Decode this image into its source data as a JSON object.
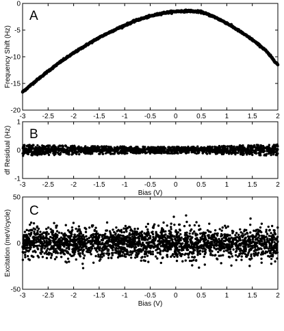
{
  "chart_data": [
    {
      "type": "scatter",
      "panel_letter": "A",
      "xlabel": "",
      "ylabel": "Frequency Shift (Hz)",
      "xlim": [
        -3,
        2
      ],
      "ylim": [
        -20,
        0
      ],
      "xticks": [
        -3,
        -2.5,
        -2,
        -1.5,
        -1,
        -0.5,
        0,
        0.5,
        1,
        1.5,
        2
      ],
      "yticks": [
        -20,
        -15,
        -10,
        -5,
        0
      ],
      "grid": false,
      "series": [
        {
          "x": [
            -3.0,
            -2.75,
            -2.5,
            -2.25,
            -2.0,
            -1.75,
            -1.5,
            -1.25,
            -1.0,
            -0.75,
            -0.5,
            -0.25,
            0.0,
            0.25,
            0.5,
            0.75,
            1.0,
            1.25,
            1.5,
            1.75,
            2.0
          ],
          "values": [
            -16.6,
            -14.6,
            -12.7,
            -10.9,
            -9.3,
            -7.8,
            -6.4,
            -5.2,
            -4.1,
            -3.1,
            -2.4,
            -1.8,
            -1.5,
            -1.4,
            -1.6,
            -2.5,
            -3.7,
            -5.2,
            -6.8,
            -8.7,
            -11.5
          ]
        }
      ]
    },
    {
      "type": "scatter",
      "panel_letter": "B",
      "xlabel": "Bias (V)",
      "ylabel": "df Residual (Hz)",
      "xlim": [
        -3,
        2
      ],
      "ylim": [
        -1,
        1
      ],
      "xticks": [
        -3,
        -2.5,
        -2,
        -1.5,
        -1,
        -0.5,
        0,
        0.5,
        1,
        1.5,
        2
      ],
      "yticks": [
        -1,
        0,
        1
      ],
      "grid": false,
      "series": [
        {
          "x": [
            -3.0,
            -2.5,
            -2.0,
            -1.5,
            -1.0,
            -0.5,
            0.0,
            0.5,
            1.0,
            1.5,
            2.0
          ],
          "values": [
            0,
            0,
            0,
            0,
            0,
            0,
            0,
            0,
            0,
            0,
            0
          ],
          "spread": [
            0.2,
            0.18,
            0.16,
            0.14,
            0.13,
            0.12,
            0.12,
            0.13,
            0.15,
            0.18,
            0.2
          ]
        }
      ]
    },
    {
      "type": "scatter",
      "panel_letter": "C",
      "xlabel": "Bias (V)",
      "ylabel": "Excitation (meV/cycle)",
      "xlim": [
        -3,
        2
      ],
      "ylim": [
        -50,
        50
      ],
      "xticks": [
        -3,
        -2.5,
        -2,
        -1.5,
        -1,
        -0.5,
        0,
        0.5,
        1,
        1.5,
        2
      ],
      "yticks": [
        -50,
        0,
        50
      ],
      "grid": false,
      "series": [
        {
          "x": [
            -3.0,
            -2.5,
            -2.0,
            -1.5,
            -1.0,
            -0.5,
            0.0,
            0.5,
            1.0,
            1.5,
            2.0
          ],
          "values": [
            0,
            0,
            0,
            0,
            0,
            0,
            0,
            0,
            0,
            0,
            0
          ],
          "spread": [
            8,
            8,
            8,
            8,
            8,
            8,
            8,
            8,
            8,
            8,
            8
          ]
        }
      ]
    }
  ]
}
